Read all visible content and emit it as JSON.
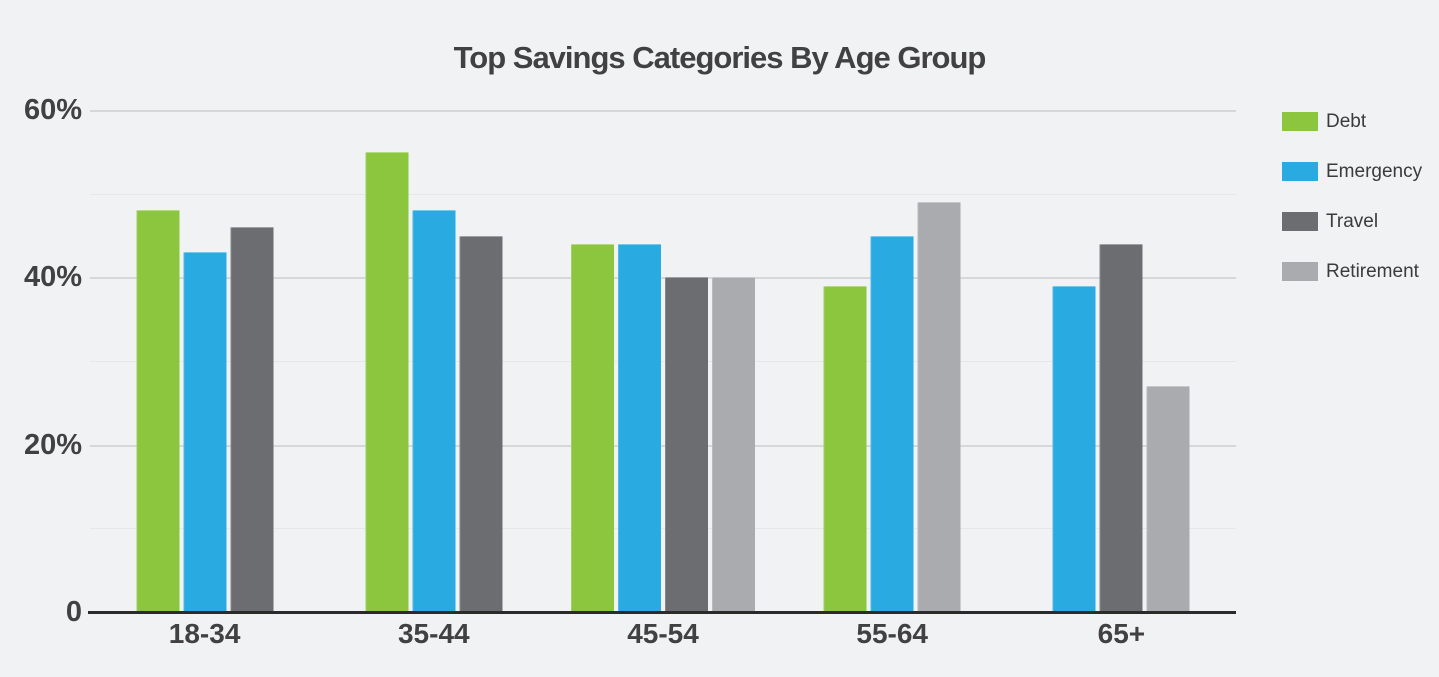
{
  "colors": {
    "background": "#F1F2F3",
    "title_text": "#414042",
    "axis_text": "#414042",
    "grid_major": "#D5D7D9",
    "grid_minor": "#E5E7E9",
    "axis_line": "#2B2B2B",
    "legend_text": "#3B3B3C"
  },
  "chart_data": {
    "type": "bar",
    "title": "Top Savings Categories By Age Group",
    "xlabel": "",
    "ylabel": "",
    "categories": [
      "18-34",
      "35-44",
      "45-54",
      "55-64",
      "65+"
    ],
    "series": [
      {
        "name": "Debt",
        "color": "#8CC63F",
        "values": [
          48,
          55,
          44,
          39,
          null
        ]
      },
      {
        "name": "Emergency",
        "color": "#29ABE2",
        "values": [
          43,
          48,
          44,
          45,
          39
        ]
      },
      {
        "name": "Travel",
        "color": "#6C6D70",
        "values": [
          46,
          45,
          40,
          null,
          44
        ]
      },
      {
        "name": "Retirement",
        "color": "#A9ABAE",
        "values": [
          null,
          null,
          40,
          49,
          27
        ]
      }
    ],
    "ylim": [
      0,
      60
    ],
    "grid_step": 10,
    "grid": true,
    "yticks_labeled": [
      {
        "value": 60,
        "label": "60%"
      },
      {
        "value": 40,
        "label": "40%"
      },
      {
        "value": 20,
        "label": "20%"
      },
      {
        "value": 0,
        "label": "0"
      }
    ],
    "legend_position": "right",
    "missing_bars_note": "bars with null value are not drawn; remaining bars are centered on the category tick"
  }
}
